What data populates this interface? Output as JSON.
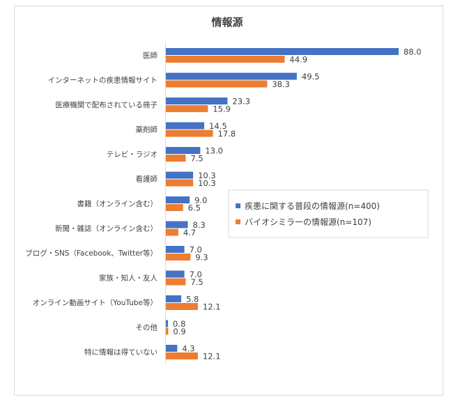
{
  "chart_data": {
    "type": "bar",
    "orientation": "horizontal",
    "title": "情報源",
    "xlabel": "",
    "ylabel": "",
    "xlim": [
      0,
      88
    ],
    "grid": false,
    "legend_position": "right-middle",
    "categories": [
      "医師",
      "インターネットの疾患情報サイト",
      "医療機関で配布されている冊子",
      "薬剤師",
      "テレビ・ラジオ",
      "看護師",
      "書籍（オンライン含む）",
      "新聞・雑誌（オンライン含む）",
      "ブログ・SNS（Facebook、Twitter等）",
      "家族・知人・友人",
      "オンライン動画サイト（YouTube等）",
      "その他",
      "特に情報は得ていない"
    ],
    "series": [
      {
        "name": "疾患に関する普段の情報源(n=400)",
        "color": "#4472c4",
        "values": [
          88.0,
          49.5,
          23.3,
          14.5,
          13.0,
          10.3,
          9.0,
          8.3,
          7.0,
          7.0,
          5.8,
          0.8,
          4.3
        ],
        "labels": [
          "88.0",
          "49.5",
          "23.3",
          "14.5",
          "13.0",
          "10.3",
          "9.0",
          "8.3",
          "7.0",
          "7.0",
          "5.8",
          "0.8",
          "4.3"
        ]
      },
      {
        "name": "バイオシミラーの情報源(n=107)",
        "color": "#ed7d31",
        "values": [
          44.9,
          38.3,
          15.9,
          17.8,
          7.5,
          10.3,
          6.5,
          4.7,
          9.3,
          7.5,
          12.1,
          0.9,
          12.1
        ],
        "labels": [
          "44.9",
          "38.3",
          "15.9",
          "17.8",
          "7.5",
          "10.3",
          "6.5",
          "4.7",
          "9.3",
          "7.5",
          "12.1",
          "0.9",
          "12.1"
        ]
      }
    ]
  }
}
